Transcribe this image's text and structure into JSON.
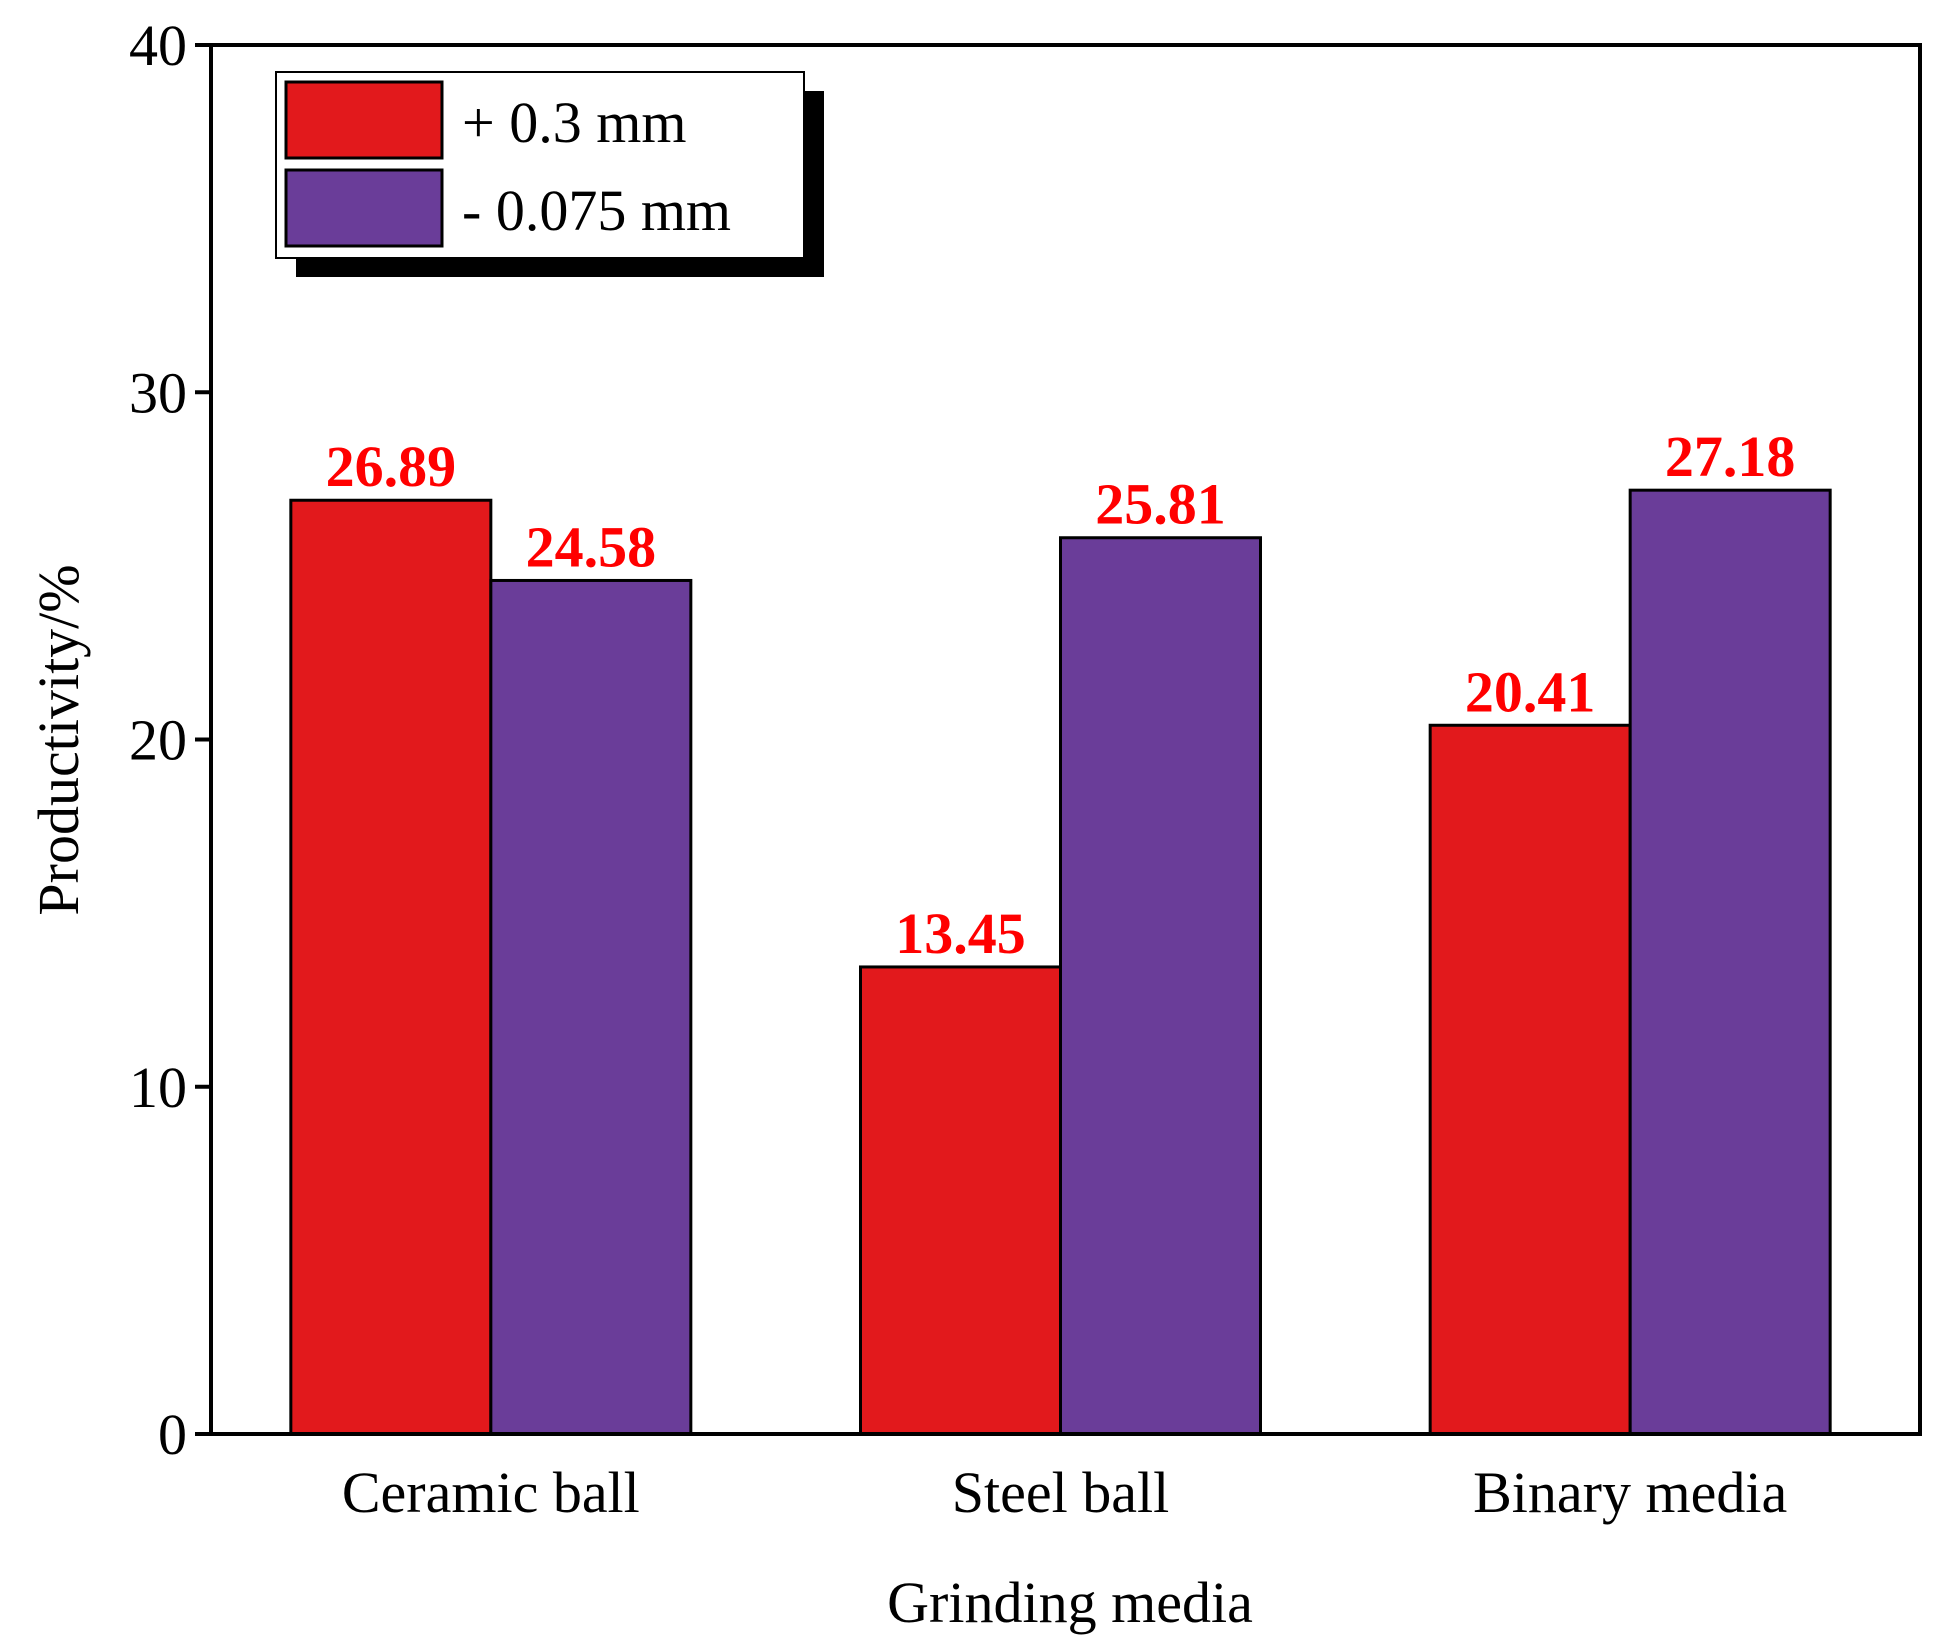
{
  "chart_data": {
    "type": "bar",
    "title": "",
    "xlabel": "Grinding media",
    "ylabel": "Productivity/%",
    "ylim": [
      0,
      40
    ],
    "yticks": [
      "0",
      "10",
      "20",
      "30",
      "40"
    ],
    "categories": [
      "Ceramic ball",
      "Steel ball",
      "Binary media"
    ],
    "series": [
      {
        "name": "+ 0.3 mm",
        "color": "#E2191C",
        "values": [
          26.89,
          13.45,
          20.41
        ],
        "labels": [
          "26.89",
          "13.45",
          "20.41"
        ]
      },
      {
        "name": "- 0.075 mm",
        "color": "#6A3D99",
        "values": [
          24.58,
          25.81,
          27.18
        ],
        "labels": [
          "24.58",
          "25.81",
          "27.18"
        ]
      }
    ],
    "data_label_color": "#FF0000",
    "legend_position": "top-left",
    "grid": false
  }
}
